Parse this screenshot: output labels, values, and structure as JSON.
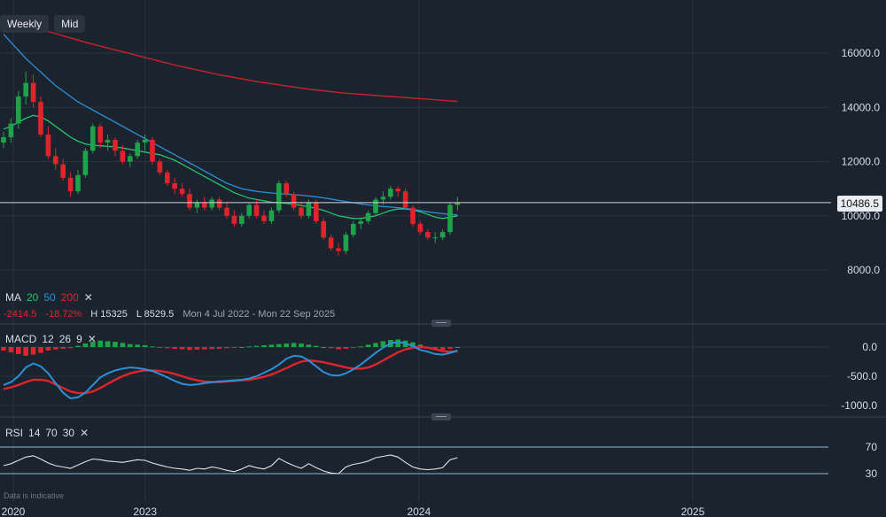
{
  "toolbar": {
    "period": "Weekly",
    "price_type": "Mid"
  },
  "ma_legend": {
    "label": "MA",
    "p1": "20",
    "p2": "50",
    "p3": "200",
    "close": "✕"
  },
  "stats": {
    "change": "-2414.5",
    "change_pct": "-18.72%",
    "high": "H 15325",
    "low": "L 8529.5",
    "range": "Mon 4 Jul 2022 - Mon 22 Sep 2025"
  },
  "macd_legend": {
    "label": "MACD",
    "p1": "12",
    "p2": "26",
    "p3": "9",
    "close": "✕"
  },
  "rsi_legend": {
    "label": "RSI",
    "p1": "14",
    "p2": "70",
    "p3": "30",
    "close": "✕"
  },
  "footnote": "Data is indicative",
  "last_price": "10486.5",
  "colors": {
    "up": "#1fa34a",
    "down": "#e0242b",
    "ma20": "#27c26a",
    "ma50": "#2d8fd6",
    "ma200": "#c8232a",
    "macd": "#2d8fd6",
    "signal": "#e0242b",
    "rsi": "#dfe4ea",
    "bg": "#1b232e"
  },
  "chart_data": [
    {
      "type": "candlestick",
      "title": "",
      "ylim": [
        6600,
        17600
      ],
      "y_ticks": [
        "16000.0",
        "14000.0",
        "12000.0",
        "10000.0",
        "8000.0"
      ],
      "x_ticks": [
        "2020",
        "2023",
        "2024",
        "2025"
      ],
      "candles": [
        [
          12700,
          13100,
          12500,
          12900
        ],
        [
          12900,
          13600,
          12700,
          13400
        ],
        [
          13400,
          14600,
          13200,
          14400
        ],
        [
          14400,
          15325,
          14100,
          14900
        ],
        [
          14900,
          15200,
          14000,
          14200
        ],
        [
          14200,
          14400,
          12900,
          13000
        ],
        [
          13000,
          13300,
          12100,
          12200
        ],
        [
          12200,
          12500,
          11700,
          11900
        ],
        [
          11900,
          12100,
          11300,
          11400
        ],
        [
          11400,
          11600,
          10700,
          10900
        ],
        [
          10900,
          11700,
          10800,
          11500
        ],
        [
          11500,
          12500,
          11400,
          12400
        ],
        [
          12400,
          13400,
          12300,
          13300
        ],
        [
          13300,
          13400,
          12500,
          12700
        ],
        [
          12700,
          13000,
          12400,
          12800
        ],
        [
          12800,
          12900,
          12200,
          12400
        ],
        [
          12400,
          12600,
          11900,
          12000
        ],
        [
          12000,
          12300,
          11800,
          12200
        ],
        [
          12200,
          12800,
          12100,
          12700
        ],
        [
          12700,
          13000,
          12400,
          12800
        ],
        [
          12800,
          12900,
          11900,
          12000
        ],
        [
          12000,
          12100,
          11500,
          11600
        ],
        [
          11600,
          11700,
          11100,
          11200
        ],
        [
          11200,
          11400,
          10800,
          11000
        ],
        [
          11000,
          11200,
          10700,
          10800
        ],
        [
          10800,
          11000,
          10200,
          10300
        ],
        [
          10300,
          10600,
          10100,
          10500
        ],
        [
          10500,
          10700,
          10200,
          10300
        ],
        [
          10300,
          10700,
          10200,
          10600
        ],
        [
          10600,
          10700,
          10200,
          10300
        ],
        [
          10300,
          10500,
          9900,
          10000
        ],
        [
          10000,
          10200,
          9600,
          9700
        ],
        [
          9700,
          10100,
          9600,
          10000
        ],
        [
          10000,
          10500,
          9900,
          10400
        ],
        [
          10400,
          10600,
          9900,
          10000
        ],
        [
          10000,
          10200,
          9700,
          9800
        ],
        [
          9800,
          10300,
          9700,
          10200
        ],
        [
          10200,
          11300,
          10100,
          11200
        ],
        [
          11200,
          11300,
          10700,
          10800
        ],
        [
          10800,
          10900,
          10200,
          10300
        ],
        [
          10300,
          10500,
          9900,
          10000
        ],
        [
          10000,
          10600,
          9900,
          10500
        ],
        [
          10500,
          10600,
          9700,
          9800
        ],
        [
          9800,
          9900,
          9100,
          9200
        ],
        [
          9200,
          9300,
          8700,
          8800
        ],
        [
          8800,
          9000,
          8529.5,
          8700
        ],
        [
          8700,
          9400,
          8600,
          9300
        ],
        [
          9300,
          9800,
          9200,
          9700
        ],
        [
          9700,
          9900,
          9500,
          9800
        ],
        [
          9800,
          10200,
          9700,
          10100
        ],
        [
          10100,
          10700,
          10000,
          10600
        ],
        [
          10600,
          10900,
          10400,
          10700
        ],
        [
          10700,
          11100,
          10600,
          11000
        ],
        [
          11000,
          11100,
          10700,
          10900
        ],
        [
          10900,
          11000,
          10200,
          10300
        ],
        [
          10300,
          10400,
          9600,
          9700
        ],
        [
          9700,
          9800,
          9300,
          9400
        ],
        [
          9400,
          9500,
          9100,
          9200
        ],
        [
          9200,
          9400,
          9000,
          9200
        ],
        [
          9200,
          9500,
          9100,
          9400
        ],
        [
          9400,
          10500,
          9300,
          10400
        ],
        [
          10400,
          10700,
          10200,
          10486.5
        ]
      ],
      "ma20": [
        13200,
        13300,
        13450,
        13600,
        13700,
        13650,
        13500,
        13300,
        13100,
        12900,
        12750,
        12650,
        12600,
        12580,
        12560,
        12540,
        12500,
        12450,
        12400,
        12350,
        12300,
        12250,
        12150,
        12050,
        11900,
        11750,
        11600,
        11450,
        11300,
        11150,
        11000,
        10850,
        10750,
        10650,
        10600,
        10550,
        10500,
        10480,
        10460,
        10420,
        10380,
        10330,
        10280,
        10200,
        10100,
        10000,
        9950,
        9900,
        9900,
        9950,
        10000,
        10100,
        10200,
        10250,
        10250,
        10220,
        10150,
        10050,
        9950,
        9900,
        9950,
        10000
      ],
      "ma50": [
        16700,
        16400,
        16100,
        15800,
        15550,
        15300,
        15050,
        14800,
        14600,
        14400,
        14200,
        14050,
        13900,
        13750,
        13600,
        13450,
        13300,
        13150,
        13000,
        12850,
        12700,
        12550,
        12400,
        12250,
        12100,
        11950,
        11800,
        11650,
        11500,
        11350,
        11200,
        11100,
        11000,
        10950,
        10900,
        10870,
        10840,
        10820,
        10800,
        10780,
        10760,
        10730,
        10700,
        10660,
        10620,
        10570,
        10520,
        10480,
        10440,
        10400,
        10370,
        10340,
        10320,
        10300,
        10270,
        10230,
        10190,
        10150,
        10110,
        10080,
        10050,
        10030
      ],
      "ma200": [
        17400,
        17300,
        17200,
        17100,
        17000,
        16900,
        16800,
        16720,
        16640,
        16560,
        16480,
        16400,
        16330,
        16260,
        16190,
        16120,
        16050,
        15980,
        15910,
        15840,
        15770,
        15700,
        15630,
        15560,
        15500,
        15440,
        15380,
        15320,
        15260,
        15200,
        15150,
        15100,
        15050,
        15000,
        14950,
        14910,
        14870,
        14830,
        14790,
        14750,
        14710,
        14670,
        14640,
        14610,
        14580,
        14550,
        14520,
        14500,
        14480,
        14460,
        14440,
        14420,
        14400,
        14380,
        14360,
        14340,
        14320,
        14300,
        14280,
        14260,
        14240,
        14220
      ]
    },
    {
      "type": "bar+line",
      "title": "MACD",
      "ylim": [
        -1150,
        400
      ],
      "y_ticks": [
        "0.0",
        "-500.0",
        "-1000.0"
      ],
      "histogram": [
        -60,
        -90,
        -120,
        -150,
        -130,
        -100,
        -60,
        -40,
        -30,
        -20,
        20,
        60,
        90,
        110,
        100,
        90,
        70,
        50,
        40,
        30,
        10,
        -10,
        -20,
        -30,
        -40,
        -50,
        -45,
        -40,
        -35,
        -30,
        -20,
        -10,
        0,
        10,
        20,
        30,
        40,
        50,
        60,
        70,
        60,
        40,
        20,
        0,
        -20,
        -40,
        -30,
        -10,
        10,
        40,
        70,
        100,
        120,
        130,
        110,
        80,
        40,
        0,
        -30,
        -50,
        -30,
        0
      ],
      "macd": [
        -650,
        -600,
        -500,
        -350,
        -280,
        -330,
        -450,
        -620,
        -780,
        -880,
        -860,
        -780,
        -650,
        -520,
        -450,
        -400,
        -370,
        -350,
        -360,
        -380,
        -410,
        -460,
        -520,
        -580,
        -630,
        -650,
        -640,
        -620,
        -600,
        -590,
        -580,
        -570,
        -560,
        -540,
        -500,
        -440,
        -380,
        -300,
        -200,
        -150,
        -160,
        -230,
        -330,
        -430,
        -480,
        -490,
        -450,
        -380,
        -300,
        -200,
        -100,
        -10,
        60,
        90,
        60,
        20,
        -50,
        -80,
        -120,
        -130,
        -100,
        -60
      ],
      "signal": [
        -720,
        -690,
        -650,
        -600,
        -560,
        -560,
        -580,
        -640,
        -700,
        -760,
        -790,
        -790,
        -760,
        -700,
        -630,
        -560,
        -500,
        -450,
        -420,
        -400,
        -400,
        -410,
        -430,
        -460,
        -500,
        -540,
        -570,
        -590,
        -600,
        -600,
        -590,
        -580,
        -570,
        -560,
        -540,
        -510,
        -470,
        -420,
        -360,
        -300,
        -250,
        -230,
        -240,
        -260,
        -290,
        -320,
        -350,
        -370,
        -370,
        -350,
        -300,
        -230,
        -160,
        -90,
        -40,
        -10,
        0,
        -10,
        -40,
        -70,
        -80,
        -75
      ]
    },
    {
      "type": "line",
      "title": "RSI",
      "ylim": [
        20,
        75
      ],
      "y_ticks": [
        "70",
        "30"
      ],
      "levels": [
        70,
        30
      ],
      "values": [
        42,
        45,
        50,
        55,
        57,
        52,
        46,
        42,
        40,
        38,
        43,
        48,
        52,
        51,
        49,
        48,
        47,
        49,
        51,
        50,
        46,
        43,
        40,
        38,
        37,
        35,
        38,
        37,
        40,
        38,
        35,
        33,
        37,
        42,
        39,
        37,
        42,
        53,
        47,
        42,
        38,
        45,
        39,
        34,
        31,
        30,
        40,
        44,
        46,
        49,
        54,
        56,
        58,
        55,
        47,
        40,
        37,
        36,
        37,
        39,
        51,
        54
      ]
    }
  ]
}
